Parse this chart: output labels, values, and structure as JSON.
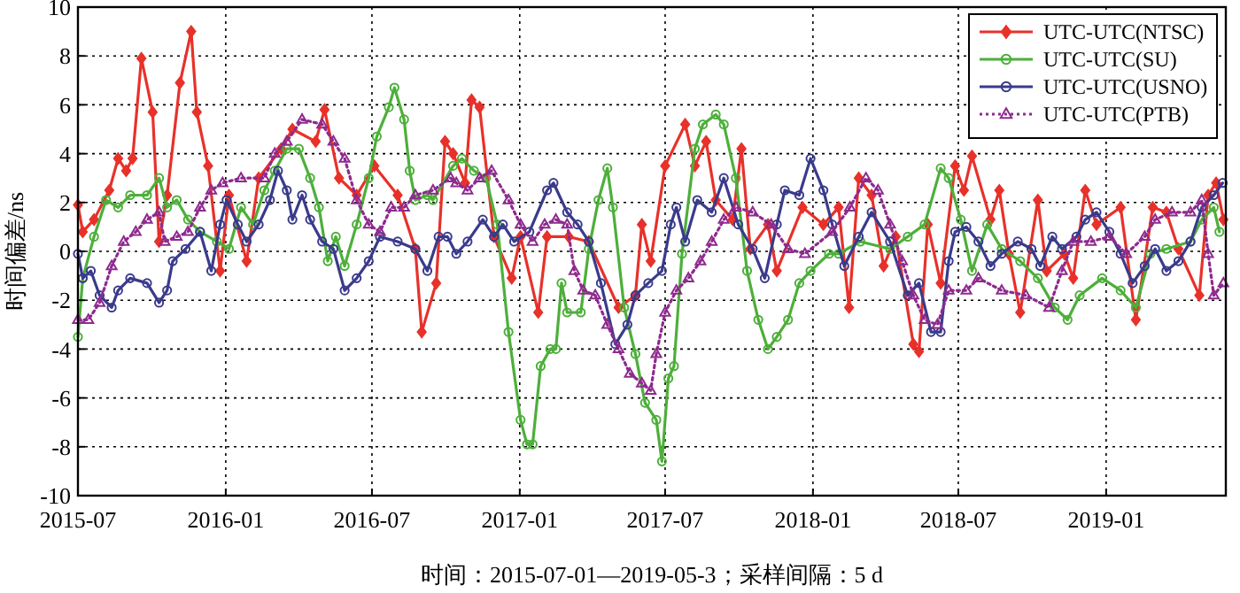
{
  "chart_data": {
    "type": "line",
    "xlabel": "时间：2015-07-01—2019-05-3；采样间隔：5 d",
    "ylabel": "时间偏差/ns",
    "xlim": [
      "2015-07-01",
      "2019-05-30"
    ],
    "xticks": [
      "2015-07",
      "2016-01",
      "2016-07",
      "2017-01",
      "2017-07",
      "2018-01",
      "2018-07",
      "2019-01"
    ],
    "ylim": [
      -10,
      10
    ],
    "yticks": [
      -10,
      -8,
      -6,
      -4,
      -2,
      0,
      2,
      4,
      6,
      8,
      10
    ],
    "grid": true,
    "legend": "top right",
    "series": [
      {
        "name": "UTC-UTC(NTSC)",
        "color": "#e8312a",
        "marker": "diamond",
        "line_style": "solid",
        "x": [
          "2015-07-01",
          "2015-07-07",
          "2015-07-21",
          "2015-08-09",
          "2015-08-20",
          "2015-08-30",
          "2015-09-07",
          "2015-09-18",
          "2015-10-02",
          "2015-10-10",
          "2015-10-20",
          "2015-11-05",
          "2015-11-19",
          "2015-11-26",
          "2015-12-10",
          "2015-12-25",
          "2016-01-05",
          "2016-01-27",
          "2016-02-11",
          "2016-03-10",
          "2016-03-24",
          "2016-04-22",
          "2016-05-03",
          "2016-05-21",
          "2016-06-12",
          "2016-07-04",
          "2016-08-02",
          "2016-08-24",
          "2016-09-01",
          "2016-09-19",
          "2016-09-30",
          "2016-10-10",
          "2016-10-25",
          "2016-11-02",
          "2016-11-12",
          "2016-11-30",
          "2016-12-22",
          "2017-01-02",
          "2017-01-24",
          "2017-02-04",
          "2017-03-03",
          "2017-03-28",
          "2017-05-04",
          "2017-05-25",
          "2017-06-02",
          "2017-06-13",
          "2017-07-01",
          "2017-07-26",
          "2017-08-07",
          "2017-08-21",
          "2017-09-02",
          "2017-09-23",
          "2017-10-04",
          "2017-10-15",
          "2017-11-06",
          "2017-11-17",
          "2017-12-19",
          "2018-01-14",
          "2018-02-02",
          "2018-02-15",
          "2018-02-27",
          "2018-03-15",
          "2018-03-30",
          "2018-04-14",
          "2018-05-06",
          "2018-05-13",
          "2018-05-24",
          "2018-06-09",
          "2018-06-27",
          "2018-07-08",
          "2018-07-18",
          "2018-08-10",
          "2018-08-21",
          "2018-09-02",
          "2018-09-16",
          "2018-10-08",
          "2018-10-19",
          "2018-11-10",
          "2018-11-21",
          "2018-12-06",
          "2018-12-20",
          "2019-01-19",
          "2019-02-07",
          "2019-02-28",
          "2019-03-17",
          "2019-04-01",
          "2019-04-27",
          "2019-05-08",
          "2019-05-18",
          "2019-05-27"
        ],
        "values": [
          1.9,
          0.8,
          1.3,
          2.5,
          3.8,
          3.3,
          3.8,
          7.9,
          5.7,
          0.4,
          2.3,
          6.9,
          9.0,
          5.7,
          3.5,
          -0.8,
          2.3,
          -0.4,
          3.0,
          4.2,
          5.0,
          4.5,
          5.8,
          3.0,
          2.3,
          3.5,
          2.3,
          0.1,
          -3.3,
          -1.3,
          4.5,
          4.0,
          2.8,
          6.2,
          5.9,
          0.6,
          -1.1,
          0.6,
          -2.5,
          0.6,
          0.6,
          0.4,
          -2.3,
          -1.8,
          1.1,
          -0.4,
          3.5,
          5.2,
          3.5,
          4.5,
          2.1,
          1.3,
          4.2,
          0.1,
          1.1,
          -0.8,
          1.8,
          1.1,
          1.8,
          -2.3,
          3.0,
          2.3,
          -0.6,
          0.6,
          -3.8,
          -4.1,
          1.1,
          -1.3,
          3.5,
          2.5,
          3.9,
          1.3,
          2.5,
          -0.1,
          -2.5,
          2.1,
          -0.8,
          -0.1,
          -1.1,
          2.5,
          1.1,
          1.8,
          -2.8,
          1.8,
          1.6,
          0.1,
          -1.8,
          2.3,
          2.8,
          1.3
        ]
      },
      {
        "name": "UTC-UTC(SU)",
        "color": "#4daf3a",
        "marker": "circle",
        "line_style": "solid",
        "x": [
          "2015-07-01",
          "2015-07-07",
          "2015-07-21",
          "2015-08-05",
          "2015-08-20",
          "2015-09-04",
          "2015-09-25",
          "2015-10-10",
          "2015-10-20",
          "2015-11-01",
          "2015-11-15",
          "2015-11-30",
          "2015-12-21",
          "2016-01-05",
          "2016-01-20",
          "2016-02-04",
          "2016-02-18",
          "2016-03-02",
          "2016-03-17",
          "2016-04-01",
          "2016-04-15",
          "2016-04-26",
          "2016-05-07",
          "2016-05-17",
          "2016-05-28",
          "2016-06-12",
          "2016-06-27",
          "2016-07-07",
          "2016-07-22",
          "2016-07-29",
          "2016-08-10",
          "2016-08-17",
          "2016-08-24",
          "2016-09-08",
          "2016-09-15",
          "2016-10-10",
          "2016-10-21",
          "2016-11-05",
          "2016-11-20",
          "2016-12-04",
          "2016-12-18",
          "2017-01-02",
          "2017-01-10",
          "2017-01-17",
          "2017-01-27",
          "2017-02-08",
          "2017-02-15",
          "2017-02-22",
          "2017-03-01",
          "2017-03-18",
          "2017-03-28",
          "2017-04-09",
          "2017-04-20",
          "2017-04-27",
          "2017-05-11",
          "2017-05-25",
          "2017-06-06",
          "2017-06-20",
          "2017-06-27",
          "2017-07-05",
          "2017-07-12",
          "2017-07-22",
          "2017-08-07",
          "2017-08-17",
          "2017-09-02",
          "2017-09-12",
          "2017-09-27",
          "2017-10-11",
          "2017-10-25",
          "2017-11-06",
          "2017-11-17",
          "2017-12-01",
          "2017-12-15",
          "2017-12-29",
          "2018-01-21",
          "2018-02-02",
          "2018-03-01",
          "2018-04-07",
          "2018-04-29",
          "2018-05-20",
          "2018-06-09",
          "2018-06-19",
          "2018-07-04",
          "2018-07-18",
          "2018-08-06",
          "2018-08-24",
          "2018-09-16",
          "2018-10-08",
          "2018-10-29",
          "2018-11-14",
          "2018-11-29",
          "2018-12-27",
          "2019-01-19",
          "2019-02-07",
          "2019-02-25",
          "2019-03-17",
          "2019-04-16",
          "2019-04-30",
          "2019-05-15",
          "2019-05-22"
        ],
        "values": [
          -3.5,
          -1.1,
          0.6,
          2.1,
          1.8,
          2.3,
          2.3,
          3.0,
          1.8,
          2.1,
          1.3,
          0.8,
          0.4,
          0.1,
          1.8,
          1.1,
          2.5,
          3.3,
          4.2,
          4.2,
          3.0,
          1.8,
          -0.4,
          0.6,
          -0.6,
          1.1,
          3.0,
          4.7,
          5.9,
          6.7,
          5.4,
          3.3,
          2.1,
          2.3,
          2.1,
          3.5,
          3.8,
          3.3,
          3.0,
          1.1,
          -3.3,
          -6.9,
          -7.9,
          -7.9,
          -4.7,
          -4.0,
          -4.0,
          -1.3,
          -2.5,
          -2.5,
          0.1,
          2.1,
          3.4,
          1.8,
          -2.3,
          -4.2,
          -6.2,
          -6.9,
          -8.6,
          -5.2,
          -4.7,
          -0.1,
          4.2,
          5.2,
          5.6,
          5.2,
          3.0,
          -0.8,
          -2.8,
          -4.0,
          -3.5,
          -2.8,
          -1.3,
          -0.8,
          -0.1,
          -0.1,
          0.4,
          0.1,
          0.6,
          1.1,
          3.4,
          3.0,
          1.3,
          -0.8,
          1.1,
          0.1,
          -0.4,
          -1.1,
          -2.3,
          -2.8,
          -1.8,
          -1.1,
          -1.6,
          -2.3,
          -0.1,
          0.1,
          0.4,
          1.3,
          1.8,
          0.8
        ]
      },
      {
        "name": "UTC-UTC(USNO)",
        "color": "#3a3a8c",
        "marker": "circle",
        "line_style": "solid",
        "x": [
          "2015-07-01",
          "2015-07-07",
          "2015-07-17",
          "2015-07-28",
          "2015-08-12",
          "2015-08-20",
          "2015-09-04",
          "2015-09-25",
          "2015-10-10",
          "2015-10-20",
          "2015-10-27",
          "2015-11-12",
          "2015-11-30",
          "2015-12-14",
          "2015-12-25",
          "2016-01-02",
          "2016-01-16",
          "2016-01-27",
          "2016-02-11",
          "2016-02-25",
          "2016-03-06",
          "2016-03-17",
          "2016-03-24",
          "2016-04-05",
          "2016-04-15",
          "2016-04-30",
          "2016-05-14",
          "2016-05-28",
          "2016-06-12",
          "2016-06-27",
          "2016-07-11",
          "2016-08-02",
          "2016-08-24",
          "2016-09-08",
          "2016-09-22",
          "2016-10-03",
          "2016-10-14",
          "2016-10-28",
          "2016-11-16",
          "2016-11-30",
          "2016-12-11",
          "2016-12-25",
          "2017-01-13",
          "2017-02-04",
          "2017-02-12",
          "2017-03-01",
          "2017-03-14",
          "2017-03-28",
          "2017-04-12",
          "2017-04-30",
          "2017-05-15",
          "2017-05-25",
          "2017-06-10",
          "2017-06-27",
          "2017-07-08",
          "2017-07-15",
          "2017-07-26",
          "2017-08-10",
          "2017-08-28",
          "2017-09-12",
          "2017-09-30",
          "2017-10-18",
          "2017-11-02",
          "2017-11-17",
          "2017-11-27",
          "2017-12-15",
          "2017-12-29",
          "2018-01-14",
          "2018-01-25",
          "2018-02-09",
          "2018-02-27",
          "2018-03-15",
          "2018-04-07",
          "2018-04-29",
          "2018-05-13",
          "2018-05-28",
          "2018-06-09",
          "2018-06-19",
          "2018-06-27",
          "2018-07-11",
          "2018-07-26",
          "2018-08-10",
          "2018-08-24",
          "2018-09-13",
          "2018-09-30",
          "2018-10-11",
          "2018-10-26",
          "2018-11-07",
          "2018-11-25",
          "2018-12-06",
          "2018-12-20",
          "2019-01-05",
          "2019-01-19",
          "2019-02-03",
          "2019-02-18",
          "2019-03-03",
          "2019-03-17",
          "2019-04-01",
          "2019-04-16",
          "2019-04-30",
          "2019-05-15",
          "2019-05-26"
        ],
        "values": [
          -0.1,
          -1.1,
          -0.8,
          -1.8,
          -2.3,
          -1.6,
          -1.1,
          -1.3,
          -2.1,
          -1.6,
          -0.4,
          0.1,
          0.8,
          -0.8,
          1.1,
          2.1,
          1.1,
          0.4,
          1.1,
          2.1,
          3.3,
          2.5,
          1.3,
          2.3,
          1.3,
          0.4,
          0.1,
          -1.6,
          -1.1,
          -0.4,
          0.6,
          0.4,
          0.1,
          -0.8,
          0.6,
          0.6,
          -0.1,
          0.4,
          1.3,
          0.6,
          1.1,
          0.4,
          0.8,
          2.5,
          2.8,
          1.6,
          1.1,
          0.4,
          -1.3,
          -3.8,
          -3.0,
          -1.8,
          -1.3,
          -0.8,
          1.1,
          1.8,
          0.4,
          2.1,
          1.6,
          3.0,
          1.1,
          0.1,
          -1.1,
          1.1,
          2.5,
          2.3,
          3.8,
          2.5,
          1.1,
          -0.6,
          0.6,
          1.6,
          0.4,
          -1.8,
          -1.3,
          -3.3,
          -3.3,
          -0.4,
          0.8,
          1.0,
          0.4,
          -0.6,
          -0.1,
          0.4,
          0.1,
          -0.6,
          0.6,
          0.1,
          0.6,
          1.3,
          1.6,
          0.8,
          -0.1,
          -1.3,
          -0.6,
          0.1,
          -0.8,
          -0.4,
          0.4,
          1.8,
          2.3,
          2.8
        ]
      },
      {
        "name": "UTC-UTC(PTB)",
        "color": "#8e2a8e",
        "marker": "triangle",
        "line_style": "dotted",
        "x": [
          "2015-07-01",
          "2015-07-14",
          "2015-07-28",
          "2015-08-12",
          "2015-08-27",
          "2015-09-11",
          "2015-09-25",
          "2015-10-10",
          "2015-10-17",
          "2015-11-01",
          "2015-11-15",
          "2015-11-30",
          "2015-12-14",
          "2015-12-28",
          "2016-01-20",
          "2016-02-18",
          "2016-03-02",
          "2016-03-17",
          "2016-04-05",
          "2016-04-30",
          "2016-05-14",
          "2016-05-28",
          "2016-06-12",
          "2016-06-27",
          "2016-07-11",
          "2016-07-25",
          "2016-08-10",
          "2016-08-24",
          "2016-09-15",
          "2016-10-07",
          "2016-10-14",
          "2016-10-28",
          "2016-11-12",
          "2016-11-27",
          "2016-12-18",
          "2017-01-02",
          "2017-01-17",
          "2017-02-01",
          "2017-02-15",
          "2017-03-01",
          "2017-03-10",
          "2017-03-21",
          "2017-04-05",
          "2017-04-20",
          "2017-05-04",
          "2017-05-18",
          "2017-06-02",
          "2017-06-13",
          "2017-06-20",
          "2017-07-01",
          "2017-07-15",
          "2017-07-30",
          "2017-08-14",
          "2017-08-28",
          "2017-09-12",
          "2017-09-27",
          "2017-10-18",
          "2017-11-10",
          "2017-12-01",
          "2017-12-22",
          "2018-01-25",
          "2018-02-16",
          "2018-03-08",
          "2018-03-23",
          "2018-04-07",
          "2018-04-22",
          "2018-05-06",
          "2018-05-20",
          "2018-06-05",
          "2018-06-19",
          "2018-07-11",
          "2018-07-26",
          "2018-08-24",
          "2018-09-23",
          "2018-10-22",
          "2018-11-07",
          "2018-11-21",
          "2018-12-13",
          "2019-01-05",
          "2019-01-26",
          "2019-02-18",
          "2019-03-03",
          "2019-03-24",
          "2019-04-16",
          "2019-04-30",
          "2019-05-08",
          "2019-05-15",
          "2019-05-27"
        ],
        "values": [
          -2.8,
          -2.8,
          -2.1,
          -0.6,
          0.4,
          0.8,
          1.3,
          1.6,
          0.4,
          0.6,
          0.8,
          1.8,
          2.5,
          2.8,
          3.0,
          3.0,
          4.0,
          4.5,
          5.4,
          5.2,
          4.5,
          3.8,
          2.1,
          1.1,
          0.8,
          1.8,
          1.8,
          2.3,
          2.5,
          3.0,
          2.8,
          2.5,
          3.0,
          3.3,
          2.1,
          1.1,
          0.4,
          1.1,
          1.3,
          1.1,
          -0.8,
          -1.6,
          -1.8,
          -3.0,
          -4.0,
          -5.0,
          -5.4,
          -5.7,
          -4.2,
          -2.5,
          -1.6,
          -1.1,
          -0.4,
          0.4,
          1.3,
          1.8,
          1.6,
          1.1,
          0.1,
          -0.1,
          0.8,
          1.8,
          3.0,
          2.5,
          1.1,
          -0.4,
          -1.8,
          -2.8,
          -3.0,
          -1.6,
          -1.6,
          -1.1,
          -1.6,
          -1.8,
          -2.3,
          -0.8,
          0.4,
          0.4,
          0.6,
          -0.1,
          0.6,
          1.3,
          1.6,
          1.6,
          2.1,
          -0.1,
          -1.8,
          -1.3
        ]
      }
    ]
  }
}
